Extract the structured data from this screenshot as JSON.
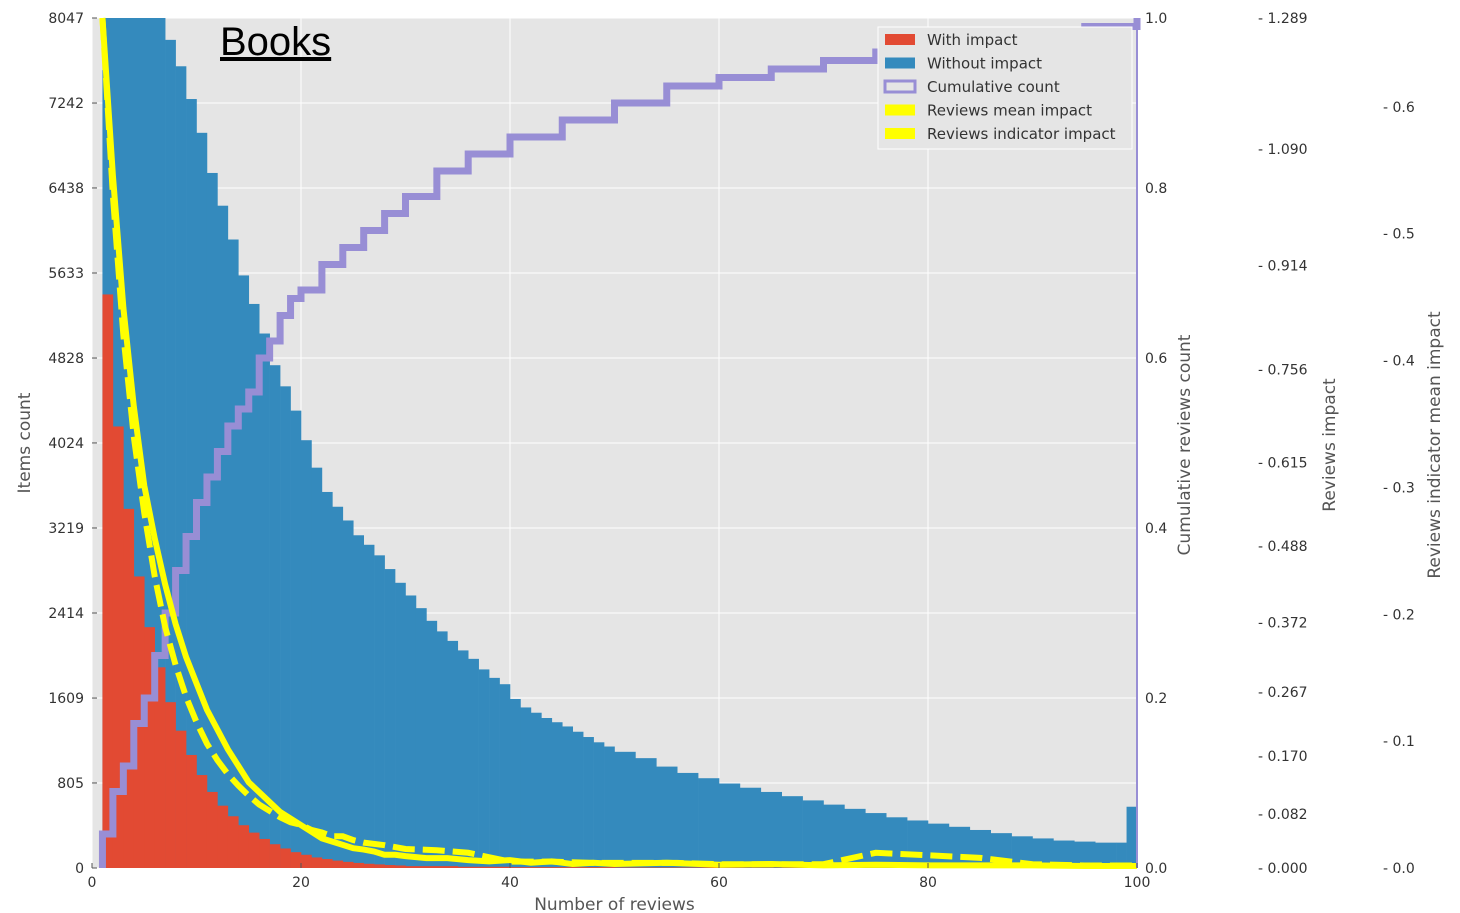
{
  "chart_data": {
    "type": "bar",
    "title": "Books",
    "xlabel": "Number of reviews",
    "ylabel": "Items count",
    "xlim": [
      0,
      100
    ],
    "ylim": [
      0,
      8047
    ],
    "x_ticks": [
      "0",
      "20",
      "40",
      "60",
      "80",
      "100"
    ],
    "y_ticks": [
      "0",
      "805",
      "1609",
      "2414",
      "3219",
      "4024",
      "4828",
      "5633",
      "6438",
      "7242",
      "8047"
    ],
    "grid": true,
    "legend_position": "top-right",
    "right_axes": [
      {
        "label": "Cumulative reviews count",
        "lim": [
          0,
          1.0
        ],
        "ticks": [
          "0.0",
          "0.2",
          "0.4",
          "0.6",
          "0.8",
          "1.0"
        ],
        "tick_values": [
          0,
          0.2,
          0.4,
          0.6,
          0.8,
          1.0
        ]
      },
      {
        "label": "Reviews impact",
        "lim": [
          0,
          1.289
        ],
        "ticks": [
          "- 0.000",
          "- 0.082",
          "- 0.170",
          "- 0.267",
          "- 0.372",
          "- 0.488",
          "- 0.615",
          "- 0.756",
          "- 0.914",
          "- 1.090",
          "- 1.289"
        ],
        "tick_values": [
          0,
          0.082,
          0.17,
          0.267,
          0.372,
          0.488,
          0.615,
          0.756,
          0.914,
          1.09,
          1.289
        ]
      },
      {
        "label": "Reviews indicator mean impact",
        "lim": [
          0,
          0.67
        ],
        "ticks": [
          "- 0.0",
          "- 0.1",
          "- 0.2",
          "- 0.3",
          "- 0.4",
          "- 0.5",
          "- 0.6"
        ],
        "tick_values": [
          0,
          0.1,
          0.2,
          0.3,
          0.4,
          0.5,
          0.6
        ]
      }
    ],
    "colors": {
      "with_impact": "#e24a33",
      "without_impact": "#348abd",
      "cumulative": "#988ed5",
      "impact_lines": "#ffff00",
      "plot_bg": "#e5e5e5",
      "grid": "#ffffff"
    },
    "series": [
      {
        "name": "With impact",
        "kind": "bar",
        "bin_edges": [
          1,
          2,
          3,
          4,
          5,
          6,
          7,
          8,
          9,
          10,
          11,
          12,
          13,
          14,
          15,
          16,
          17,
          18,
          19,
          20,
          21,
          22,
          23,
          24,
          25,
          26,
          27,
          28,
          29,
          30,
          35,
          40,
          50,
          60,
          70,
          80,
          90,
          100
        ],
        "values": [
          5430,
          4180,
          3400,
          2760,
          2280,
          1900,
          1570,
          1300,
          1070,
          880,
          720,
          590,
          490,
          405,
          335,
          275,
          225,
          185,
          150,
          125,
          100,
          85,
          70,
          58,
          48,
          40,
          34,
          28,
          24,
          18,
          12,
          8,
          5,
          3,
          2,
          1,
          1
        ]
      },
      {
        "name": "Without impact",
        "kind": "bar",
        "bin_edges": [
          1,
          2,
          3,
          4,
          5,
          6,
          7,
          8,
          9,
          10,
          11,
          12,
          13,
          14,
          15,
          16,
          17,
          18,
          19,
          20,
          21,
          22,
          23,
          24,
          25,
          26,
          27,
          28,
          29,
          30,
          31,
          32,
          33,
          34,
          35,
          36,
          37,
          38,
          39,
          40,
          41,
          42,
          43,
          44,
          45,
          46,
          47,
          48,
          49,
          50,
          52,
          54,
          56,
          58,
          60,
          62,
          64,
          66,
          68,
          70,
          72,
          74,
          76,
          78,
          80,
          82,
          84,
          86,
          88,
          90,
          92,
          94,
          96,
          98,
          99,
          100
        ],
        "values": [
          8047,
          8047,
          8047,
          8047,
          8047,
          8047,
          7840,
          7590,
          7280,
          6960,
          6580,
          6270,
          5950,
          5610,
          5340,
          5060,
          4760,
          4560,
          4330,
          4050,
          3790,
          3560,
          3420,
          3290,
          3150,
          3060,
          2960,
          2830,
          2700,
          2580,
          2460,
          2340,
          2240,
          2150,
          2060,
          1980,
          1880,
          1800,
          1740,
          1600,
          1520,
          1470,
          1420,
          1380,
          1340,
          1290,
          1240,
          1190,
          1150,
          1100,
          1040,
          960,
          900,
          850,
          800,
          760,
          720,
          680,
          640,
          600,
          560,
          520,
          480,
          450,
          420,
          390,
          360,
          330,
          300,
          280,
          260,
          250,
          240,
          240,
          580
        ]
      },
      {
        "name": "Cumulative count",
        "kind": "step",
        "axis": "right1",
        "x": [
          1,
          2,
          3,
          4,
          5,
          6,
          7,
          8,
          9,
          10,
          11,
          12,
          13,
          14,
          15,
          16,
          17,
          18,
          19,
          20,
          22,
          24,
          26,
          28,
          30,
          33,
          36,
          40,
          45,
          50,
          55,
          60,
          65,
          70,
          75,
          80,
          85,
          90,
          95,
          100
        ],
        "values": [
          0.04,
          0.09,
          0.12,
          0.17,
          0.2,
          0.25,
          0.3,
          0.35,
          0.39,
          0.43,
          0.46,
          0.49,
          0.52,
          0.54,
          0.56,
          0.6,
          0.62,
          0.65,
          0.67,
          0.68,
          0.71,
          0.73,
          0.75,
          0.77,
          0.79,
          0.82,
          0.84,
          0.86,
          0.88,
          0.9,
          0.92,
          0.93,
          0.94,
          0.95,
          0.96,
          0.96,
          0.97,
          0.98,
          0.99,
          1.0
        ]
      },
      {
        "name": "Reviews mean impact",
        "kind": "line",
        "axis": "right2",
        "x": [
          1,
          2,
          3,
          4,
          5,
          6,
          7,
          8,
          9,
          10,
          11,
          12,
          13,
          14,
          15,
          16,
          17,
          18,
          19,
          20,
          21,
          22,
          23,
          24,
          25,
          26,
          27,
          28,
          29,
          30,
          32,
          34,
          36,
          38,
          40,
          42,
          44,
          46,
          48,
          50,
          55,
          60,
          65,
          70,
          75,
          80,
          85,
          90,
          95,
          100
        ],
        "values": [
          1.289,
          1.05,
          0.85,
          0.7,
          0.58,
          0.5,
          0.43,
          0.37,
          0.32,
          0.28,
          0.24,
          0.21,
          0.18,
          0.155,
          0.13,
          0.115,
          0.1,
          0.085,
          0.075,
          0.065,
          0.055,
          0.045,
          0.04,
          0.035,
          0.03,
          0.028,
          0.025,
          0.02,
          0.02,
          0.018,
          0.015,
          0.015,
          0.012,
          0.01,
          0.012,
          0.008,
          0.01,
          0.006,
          0.008,
          0.006,
          0.008,
          0.005,
          0.006,
          0.004,
          0.005,
          0.004,
          0.004,
          0.004,
          0.003,
          0.003
        ]
      },
      {
        "name": "Reviews indicator impact",
        "kind": "line",
        "axis": "right3",
        "x": [
          1,
          2,
          3,
          4,
          5,
          6,
          7,
          8,
          9,
          10,
          11,
          12,
          13,
          14,
          15,
          16,
          17,
          18,
          19,
          20,
          21,
          22,
          23,
          24,
          25,
          26,
          28,
          30,
          33,
          36,
          40,
          44,
          48,
          52,
          56,
          60,
          65,
          70,
          75,
          80,
          85,
          90,
          95,
          100
        ],
        "values": [
          0.67,
          0.53,
          0.42,
          0.34,
          0.28,
          0.23,
          0.19,
          0.16,
          0.135,
          0.115,
          0.098,
          0.085,
          0.074,
          0.065,
          0.057,
          0.05,
          0.045,
          0.04,
          0.036,
          0.034,
          0.03,
          0.028,
          0.025,
          0.025,
          0.022,
          0.02,
          0.018,
          0.015,
          0.014,
          0.012,
          0.005,
          0.005,
          0.004,
          0.004,
          0.004,
          0.003,
          0.003,
          0.003,
          0.012,
          0.01,
          0.008,
          0.003,
          0.002,
          0.002
        ]
      }
    ]
  }
}
